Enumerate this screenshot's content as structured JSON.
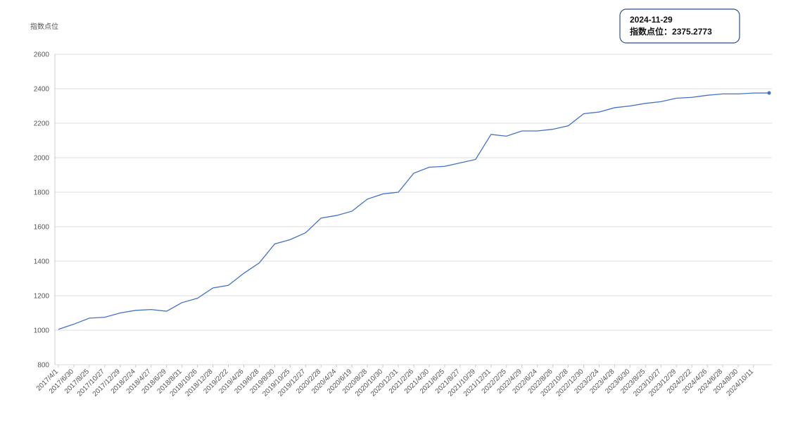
{
  "chart_data": {
    "type": "line",
    "y_axis_label": "指数点位",
    "categories": [
      "2017/4/1",
      "2017/6/30",
      "2017/8/25",
      "2017/10/27",
      "2017/12/29",
      "2018/2/24",
      "2018/4/27",
      "2018/6/29",
      "2018/8/31",
      "2018/10/26",
      "2018/12/28",
      "2019/2/22",
      "2019/4/26",
      "2019/6/28",
      "2019/8/30",
      "2019/10/25",
      "2019/12/27",
      "2020/2/28",
      "2020/4/24",
      "2020/6/19",
      "2020/8/28",
      "2020/10/30",
      "2020/12/31",
      "2021/2/26",
      "2021/4/30",
      "2021/6/25",
      "2021/8/27",
      "2021/10/29",
      "2021/12/31",
      "2022/2/25",
      "2022/4/29",
      "2022/6/24",
      "2022/8/26",
      "2022/10/28",
      "2022/12/30",
      "2023/2/24",
      "2023/4/28",
      "2023/6/30",
      "2023/8/25",
      "2023/10/27",
      "2023/12/29",
      "2024/2/22",
      "2024/4/26",
      "2024/6/28",
      "2024/8/30",
      "2024/10/11",
      null
    ],
    "series": [
      {
        "name": "指数点位",
        "color": "#4472c4",
        "values": [
          1005,
          1035,
          1070,
          1075,
          1100,
          1115,
          1120,
          1110,
          1160,
          1185,
          1245,
          1260,
          1330,
          1390,
          1500,
          1525,
          1565,
          1650,
          1665,
          1690,
          1760,
          1790,
          1800,
          1910,
          1945,
          1950,
          1970,
          1990,
          2135,
          2125,
          2155,
          2155,
          2165,
          2185,
          2255,
          2265,
          2290,
          2300,
          2315,
          2325,
          2345,
          2350,
          2362,
          2370,
          2370,
          2375,
          2375.2773
        ]
      }
    ],
    "ylim": [
      800,
      2600
    ],
    "yticks": [
      800,
      1000,
      1200,
      1400,
      1600,
      1800,
      2000,
      2200,
      2400,
      2600
    ],
    "grid": true,
    "tooltip": {
      "date": "2024-11-29",
      "label": "指数点位："
    }
  }
}
